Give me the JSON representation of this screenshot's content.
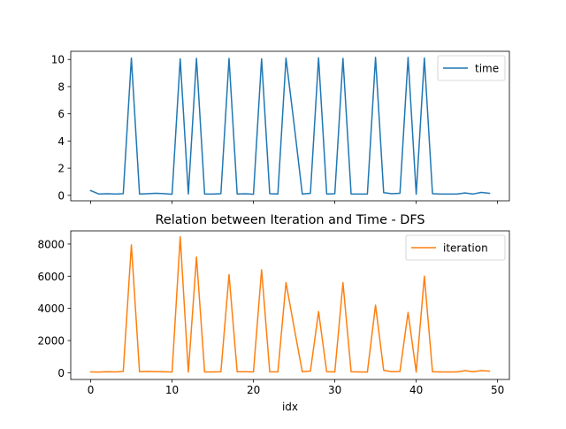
{
  "chart_data": [
    {
      "type": "line",
      "title": "",
      "xlabel": "",
      "ylabel": "",
      "xlim": [
        -2.45,
        51.45
      ],
      "ylim": [
        -0.4,
        10.6
      ],
      "xticks": [
        0,
        10,
        20,
        30,
        40,
        50
      ],
      "xtick_labels_visible": false,
      "yticks": [
        0,
        2,
        4,
        6,
        8,
        10
      ],
      "ytick_labels": [
        "0",
        "2",
        "4",
        "6",
        "8",
        "10"
      ],
      "grid": false,
      "legend": "top-right",
      "series": [
        {
          "name": "time",
          "color": "#1f77b4",
          "x": [
            0,
            1,
            2,
            3,
            4,
            5,
            6,
            7,
            8,
            9,
            10,
            11,
            12,
            13,
            14,
            15,
            16,
            17,
            18,
            19,
            20,
            21,
            22,
            23,
            24,
            25,
            26,
            27,
            28,
            29,
            30,
            31,
            32,
            33,
            34,
            35,
            36,
            37,
            38,
            39,
            40,
            41,
            42,
            43,
            44,
            45,
            46,
            47,
            48,
            49
          ],
          "values": [
            0.35,
            0.1,
            0.12,
            0.1,
            0.12,
            10.1,
            0.1,
            0.12,
            0.15,
            0.13,
            0.08,
            10.05,
            0.1,
            10.08,
            0.1,
            0.1,
            0.12,
            10.08,
            0.1,
            0.12,
            0.08,
            10.05,
            0.12,
            0.1,
            10.1,
            5.2,
            0.1,
            0.15,
            10.12,
            0.1,
            0.12,
            10.08,
            0.1,
            0.1,
            0.1,
            10.15,
            0.2,
            0.12,
            0.15,
            10.15,
            0.08,
            10.1,
            0.12,
            0.1,
            0.1,
            0.1,
            0.18,
            0.1,
            0.22,
            0.15
          ]
        }
      ]
    },
    {
      "type": "line",
      "title": "Relation between Iteration and Time - DFS",
      "xlabel": "idx",
      "ylabel": "",
      "xlim": [
        -2.45,
        51.45
      ],
      "ylim": [
        -420,
        8820
      ],
      "xticks": [
        0,
        10,
        20,
        30,
        40,
        50
      ],
      "xtick_labels": [
        "0",
        "10",
        "20",
        "30",
        "40",
        "50"
      ],
      "yticks": [
        0,
        2000,
        4000,
        6000,
        8000
      ],
      "ytick_labels": [
        "0",
        "2000",
        "4000",
        "6000",
        "8000"
      ],
      "grid": false,
      "legend": "top-right",
      "series": [
        {
          "name": "iteration",
          "color": "#ff7f0e",
          "x": [
            0,
            1,
            2,
            3,
            4,
            5,
            6,
            7,
            8,
            9,
            10,
            11,
            12,
            13,
            14,
            15,
            16,
            17,
            18,
            19,
            20,
            21,
            22,
            23,
            24,
            25,
            26,
            27,
            28,
            29,
            30,
            31,
            32,
            33,
            34,
            35,
            36,
            37,
            38,
            39,
            40,
            41,
            42,
            43,
            44,
            45,
            46,
            47,
            48,
            49
          ],
          "values": [
            50,
            40,
            60,
            50,
            80,
            7950,
            60,
            80,
            70,
            60,
            40,
            8450,
            40,
            7200,
            50,
            50,
            60,
            6100,
            60,
            60,
            50,
            6400,
            60,
            50,
            5600,
            2800,
            60,
            100,
            3800,
            60,
            50,
            5600,
            60,
            50,
            40,
            4200,
            150,
            60,
            80,
            3750,
            40,
            6000,
            60,
            50,
            50,
            50,
            130,
            60,
            130,
            100
          ]
        }
      ]
    }
  ]
}
